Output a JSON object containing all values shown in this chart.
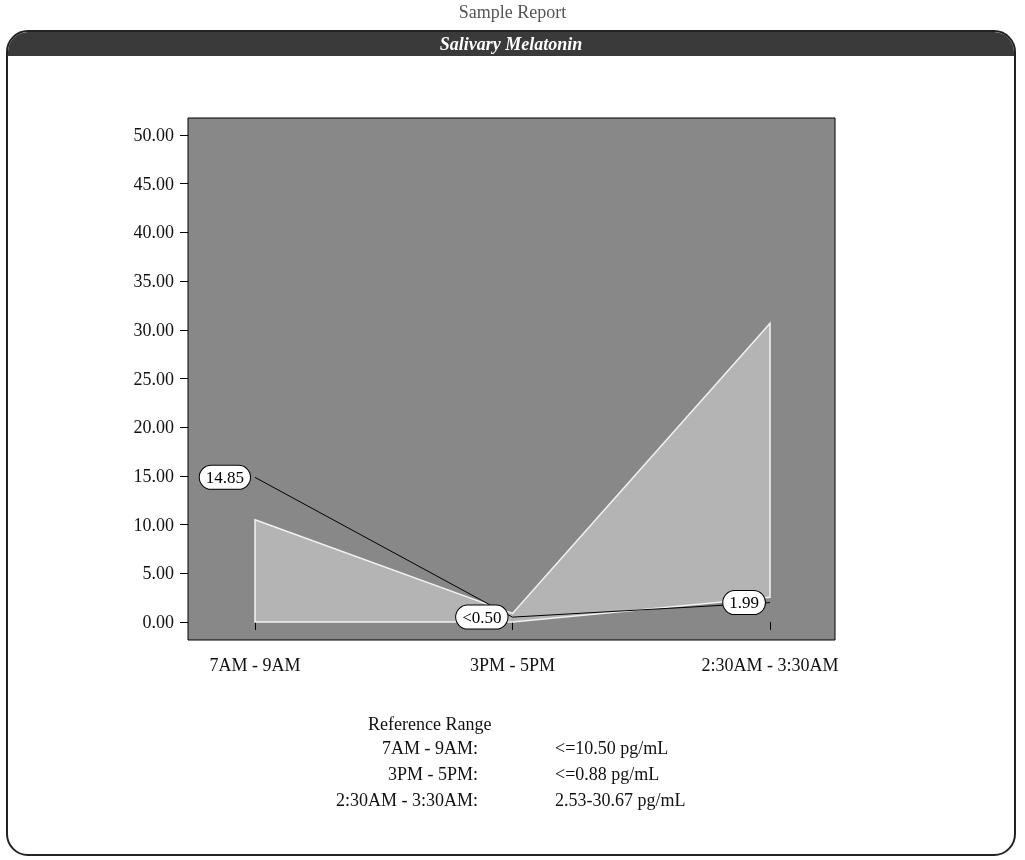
{
  "chart_data": {
    "type": "line",
    "title": "Salivary Melatonin",
    "categories": [
      "7AM - 9AM",
      "3PM - 5PM",
      "2:30AM - 3:30AM"
    ],
    "series": [
      {
        "color": "#000000",
        "values": [
          14.85,
          0.5,
          1.99
        ],
        "value_labels": [
          "14.85",
          "<0.50",
          "1.99"
        ],
        "lower": [
          0,
          0,
          2.53
        ],
        "upper": [
          10.5,
          0.88,
          30.67
        ]
      }
    ],
    "ylim": [
      -1.85,
      51.75
    ],
    "yticks": [
      {
        "value": 0,
        "label": "0.00"
      },
      {
        "value": 5,
        "label": "5.00"
      },
      {
        "value": 10,
        "label": "10.00"
      },
      {
        "value": 15,
        "label": "15.00"
      },
      {
        "value": 20,
        "label": "20.00"
      },
      {
        "value": 25,
        "label": "25.00"
      },
      {
        "value": 30,
        "label": "30.00"
      },
      {
        "value": 35,
        "label": "35.00"
      },
      {
        "value": 40,
        "label": "40.00"
      },
      {
        "value": 45,
        "label": "45.00"
      },
      {
        "value": 50,
        "label": "50.00"
      }
    ],
    "grid": false,
    "annotations": [
      "Sample Report",
      "Reference Range",
      "7AM - 9AM:",
      "<=10.50 pg/mL",
      "3PM - 5PM:",
      "<=0.88 pg/mL",
      "2:30AM - 3:30AM:",
      "2.53-30.67 pg/mL"
    ]
  }
}
